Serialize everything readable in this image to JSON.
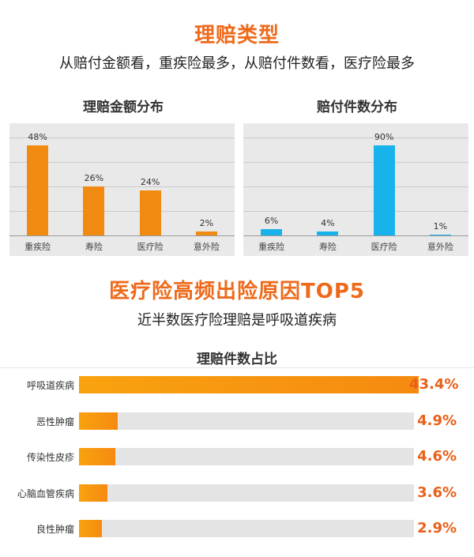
{
  "section1": {
    "title": "理赔类型",
    "subtitle": "从赔付金额看，重疾险最多，从赔付件数看，医疗险最多"
  },
  "section2": {
    "title": "医疗险高频出险原因TOP5",
    "subtitle": "近半数医疗险理赔是呼吸道疾病"
  },
  "colors": {
    "accent_orange": "#ee6a1b",
    "bar_orange": "#f08a10",
    "bar_blue": "#19b3ec",
    "panel_bg": "#e9e9ea"
  },
  "chart_data": [
    {
      "type": "bar",
      "title": "理赔金额分布",
      "categories": [
        "重疾险",
        "寿险",
        "医疗险",
        "意外险"
      ],
      "values": [
        48,
        26,
        24,
        2
      ],
      "labels": [
        "48%",
        "26%",
        "24%",
        "2%"
      ],
      "ylim": [
        0,
        52
      ],
      "grid": true,
      "color": "#f08a10"
    },
    {
      "type": "bar",
      "title": "赔付件数分布",
      "categories": [
        "重疾险",
        "寿险",
        "医疗险",
        "意外险"
      ],
      "values": [
        6,
        4,
        90,
        1
      ],
      "labels": [
        "6%",
        "4%",
        "90%",
        "1%"
      ],
      "ylim": [
        0,
        98
      ],
      "grid": true,
      "color": "#19b3ec"
    },
    {
      "type": "bar",
      "orientation": "horizontal",
      "title": "理赔件数占比",
      "categories": [
        "呼吸道疾病",
        "恶性肿瘤",
        "传染性皮疹",
        "心脑血管疾病",
        "良性肿瘤"
      ],
      "values": [
        43.4,
        4.9,
        4.6,
        3.6,
        2.9
      ],
      "labels": [
        "43.4%",
        "4.9%",
        "4.6%",
        "3.6%",
        "2.9%"
      ],
      "xlim": [
        0,
        43.4
      ],
      "color": "#f59a10"
    }
  ]
}
